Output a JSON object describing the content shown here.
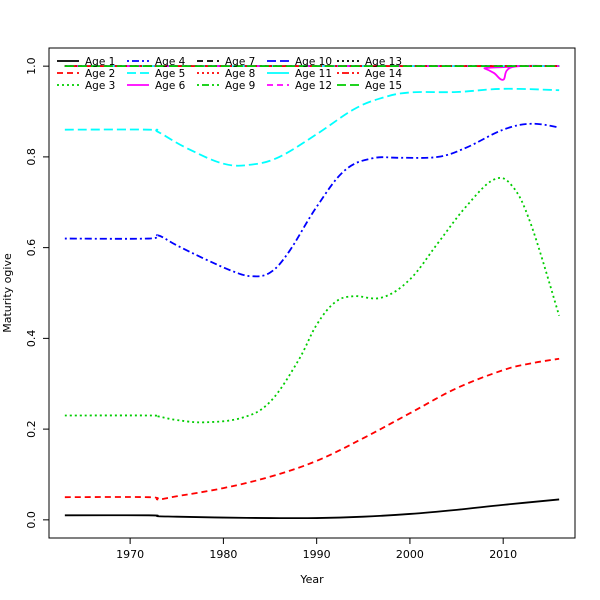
{
  "chart_data": {
    "type": "line",
    "title": "",
    "xlabel": "Year",
    "ylabel": "Maturity ogive",
    "xlim": [
      1961.3,
      2017.7
    ],
    "ylim": [
      -0.04,
      1.04
    ],
    "xticks": [
      1970,
      1980,
      1990,
      2000,
      2010
    ],
    "yticks": [
      0.0,
      0.2,
      0.4,
      0.6,
      0.8,
      1.0
    ],
    "xtick_labels": [
      "1970",
      "1980",
      "1990",
      "2000",
      "2010"
    ],
    "ytick_labels": [
      "0.0",
      "0.2",
      "0.4",
      "0.6",
      "0.8",
      "1.0"
    ],
    "grid": false,
    "legend_position": "top-left",
    "legend_columns": 5,
    "series": [
      {
        "name": "Age 1",
        "color": "#000000",
        "dash": "solid",
        "x": [
          1963,
          1972,
          1973,
          1975,
          1980,
          1985,
          1990,
          1995,
          2000,
          2005,
          2010,
          2016
        ],
        "y": [
          0.01,
          0.01,
          0.008,
          0.007,
          0.005,
          0.004,
          0.004,
          0.007,
          0.013,
          0.022,
          0.033,
          0.045
        ]
      },
      {
        "name": "Age 2",
        "color": "#ff0000",
        "dash": "dashed",
        "x": [
          1963,
          1972,
          1973,
          1975,
          1980,
          1985,
          1990,
          1995,
          2000,
          2005,
          2010,
          2013,
          2016
        ],
        "y": [
          0.05,
          0.05,
          0.045,
          0.052,
          0.07,
          0.095,
          0.13,
          0.18,
          0.235,
          0.29,
          0.33,
          0.345,
          0.355
        ]
      },
      {
        "name": "Age 3",
        "color": "#00cd00",
        "dash": "dotted",
        "x": [
          1963,
          1972,
          1973,
          1975,
          1978,
          1982,
          1985,
          1988,
          1990,
          1992,
          1994,
          1997,
          2000,
          2003,
          2006,
          2009,
          2011,
          2013,
          2016
        ],
        "y": [
          0.23,
          0.23,
          0.228,
          0.22,
          0.215,
          0.225,
          0.26,
          0.35,
          0.43,
          0.48,
          0.493,
          0.49,
          0.53,
          0.61,
          0.69,
          0.75,
          0.735,
          0.65,
          0.45
        ]
      },
      {
        "name": "Age 4",
        "color": "#0000ff",
        "dash": "dotdash",
        "x": [
          1963,
          1972,
          1973,
          1975,
          1978,
          1981,
          1983,
          1985,
          1987,
          1990,
          1993,
          1996,
          1999,
          2003,
          2006,
          2010,
          2013,
          2016
        ],
        "y": [
          0.62,
          0.62,
          0.627,
          0.605,
          0.575,
          0.548,
          0.537,
          0.545,
          0.59,
          0.69,
          0.77,
          0.797,
          0.798,
          0.8,
          0.82,
          0.86,
          0.873,
          0.865
        ]
      },
      {
        "name": "Age 5",
        "color": "#00ffff",
        "dash": "longdash",
        "x": [
          1963,
          1972,
          1973,
          1976,
          1980,
          1983,
          1986,
          1990,
          1994,
          1997,
          2000,
          2005,
          2010,
          2016
        ],
        "y": [
          0.86,
          0.86,
          0.855,
          0.82,
          0.785,
          0.783,
          0.8,
          0.85,
          0.905,
          0.93,
          0.942,
          0.943,
          0.95,
          0.947
        ]
      },
      {
        "name": "Age 6",
        "color": "#ff00ff",
        "dash": "solid",
        "x": [
          1963,
          2007,
          2008,
          2009,
          2010,
          2011,
          2016
        ],
        "y": [
          1.0,
          1.0,
          0.995,
          0.985,
          0.97,
          0.998,
          1.0
        ]
      },
      {
        "name": "Age 7",
        "color": "#000000",
        "dash": "dashed",
        "x": [
          1963,
          2016
        ],
        "y": [
          1.0,
          1.0
        ]
      },
      {
        "name": "Age 8",
        "color": "#ff0000",
        "dash": "dotted",
        "x": [
          1963,
          2016
        ],
        "y": [
          1.0,
          1.0
        ]
      },
      {
        "name": "Age 9",
        "color": "#00cd00",
        "dash": "dotdash",
        "x": [
          1963,
          2016
        ],
        "y": [
          1.0,
          1.0
        ]
      },
      {
        "name": "Age 10",
        "color": "#0000ff",
        "dash": "longdash",
        "x": [
          1963,
          2016
        ],
        "y": [
          1.0,
          1.0
        ]
      },
      {
        "name": "Age 11",
        "color": "#00ffff",
        "dash": "solid",
        "x": [
          1963,
          2016
        ],
        "y": [
          1.0,
          1.0
        ]
      },
      {
        "name": "Age 12",
        "color": "#ff00ff",
        "dash": "dashed",
        "x": [
          1963,
          2016
        ],
        "y": [
          1.0,
          1.0
        ]
      },
      {
        "name": "Age 13",
        "color": "#000000",
        "dash": "dotted",
        "x": [
          1963,
          2016
        ],
        "y": [
          1.0,
          1.0
        ]
      },
      {
        "name": "Age 14",
        "color": "#ff0000",
        "dash": "dotdash",
        "x": [
          1963,
          2016
        ],
        "y": [
          1.0,
          1.0
        ]
      },
      {
        "name": "Age 15",
        "color": "#00cd00",
        "dash": "longdash",
        "x": [
          1963,
          2016
        ],
        "y": [
          1.0,
          1.0
        ]
      }
    ]
  }
}
